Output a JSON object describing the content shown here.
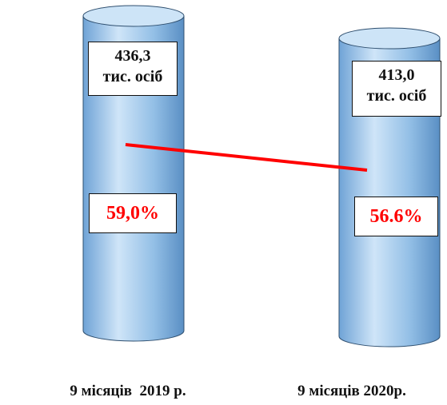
{
  "chart_data": {
    "type": "bar",
    "categories": [
      "9 місяців  2019 р.",
      "9 місяців 2020р."
    ],
    "series": [
      {
        "values": [
          436.3,
          413.0
        ],
        "value_labels": [
          [
            "436,3",
            "тис. осіб"
          ],
          [
            "413,0",
            "тис. осіб"
          ]
        ]
      },
      {
        "values": [
          59.0,
          56.6
        ],
        "value_labels": [
          "59,0%",
          "56.6%"
        ],
        "color": "#ff0000"
      }
    ],
    "colors": {
      "cylinder_light": "#cde4f7",
      "cylinder_mid": "#8fbde6",
      "cylinder_dark": "#5e94c9",
      "trend_line": "#ff0000"
    },
    "grid": false,
    "legend": "none"
  }
}
